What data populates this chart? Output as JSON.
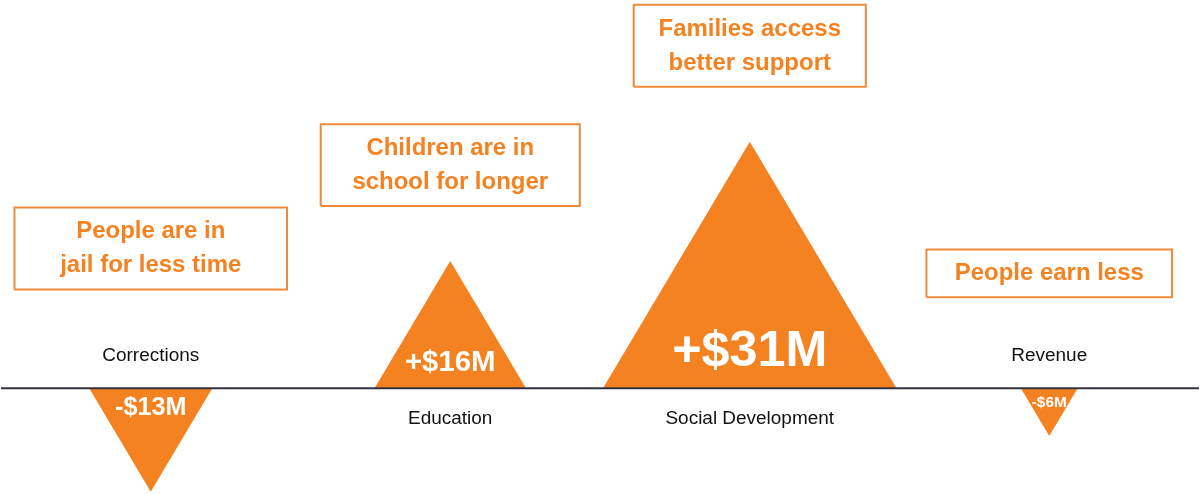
{
  "chart_data": {
    "type": "bar",
    "categories": [
      "Corrections",
      "Education",
      "Social Development",
      "Revenue"
    ],
    "values": [
      -13,
      16,
      31,
      -6
    ],
    "value_labels": [
      "-$13M",
      "+$16M",
      "+$31M",
      "-$6M"
    ],
    "color": "#f58220",
    "annotations": [
      "People are in\njail for less time",
      "Children are in\nschool for longer",
      "Families access\nbetter support",
      "People earn less"
    ]
  }
}
